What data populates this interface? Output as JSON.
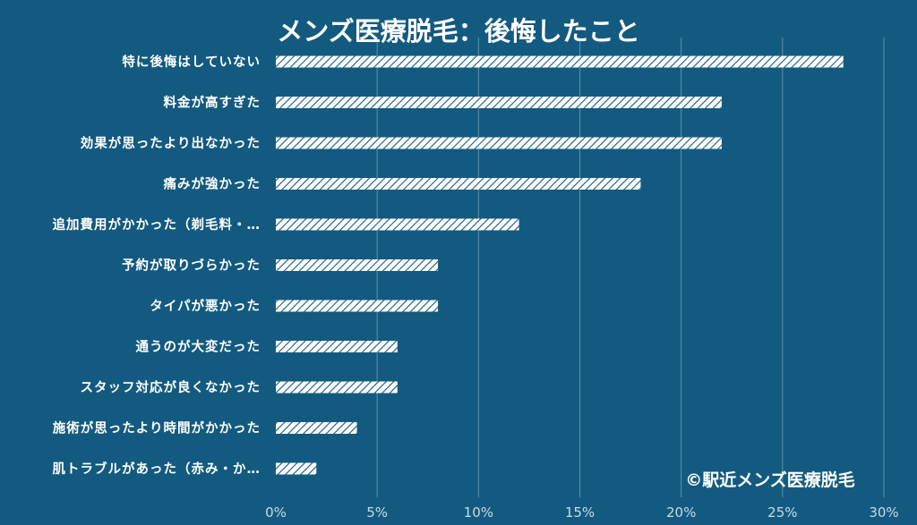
{
  "chart_data": {
    "type": "bar",
    "orientation": "horizontal",
    "title": "メンズ医療脱毛：後悔したこと",
    "categories": [
      "特に後悔はしていない",
      "料金が高すぎた",
      "効果が思ったより出なかった",
      "痛みが強かった",
      "追加費用がかかった（剃毛料・…",
      "予約が取りづらかった",
      "タイパが悪かった",
      "通うのが大変だった",
      "スタッフ対応が良くなかった",
      "施術が思ったより時間がかかった",
      "肌トラブルがあった（赤み・か…"
    ],
    "values": [
      28,
      22,
      22,
      18,
      12,
      8,
      8,
      6,
      6,
      4,
      2
    ],
    "xlim": [
      0,
      30
    ],
    "xticks": [
      "0%",
      "5%",
      "10%",
      "15%",
      "20%",
      "25%",
      "30%"
    ],
    "grid": true,
    "bar_fill": "hatched white",
    "credit": "©駅近メンズ医療脱毛"
  },
  "colors": {
    "background": "#135a80",
    "bar": "#ffffff",
    "gridline": "#5f92ad",
    "text": "#ffffff"
  }
}
